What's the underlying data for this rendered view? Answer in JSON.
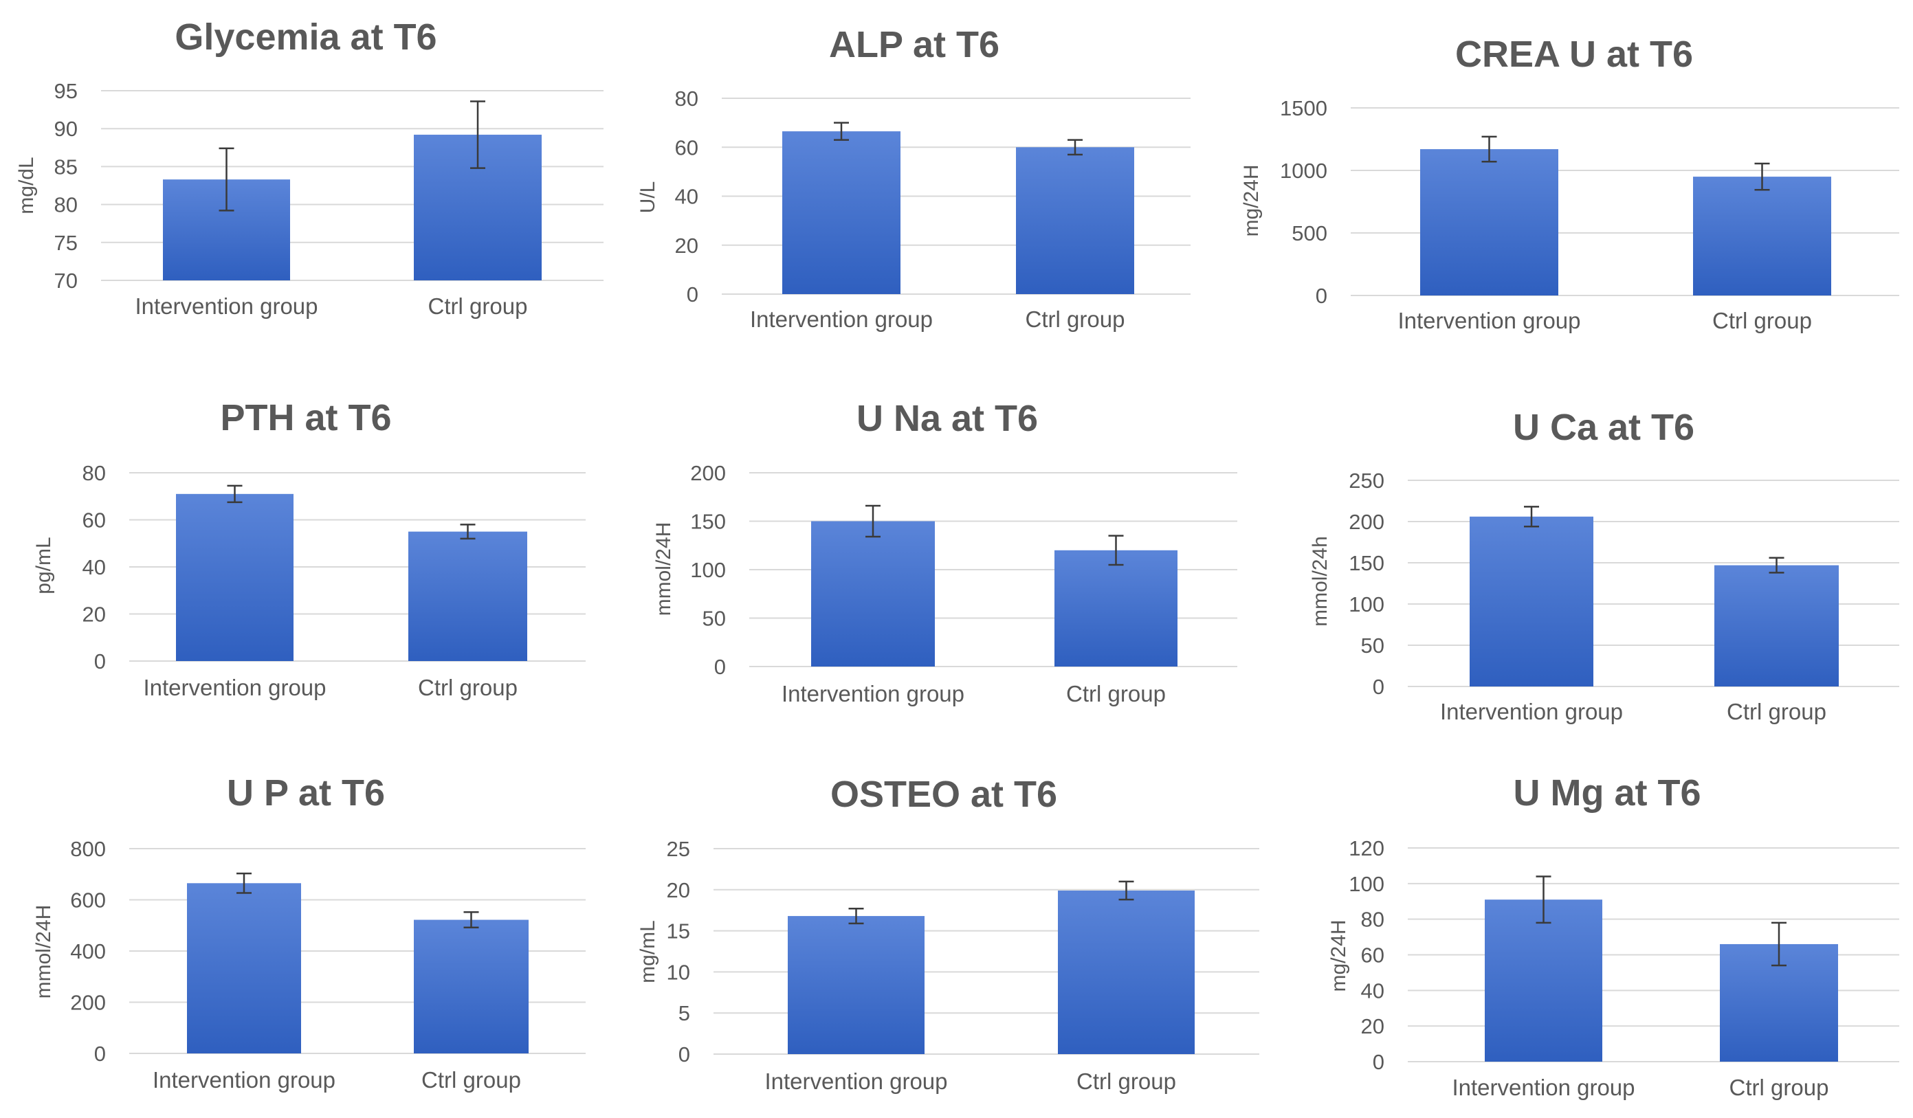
{
  "colors": {
    "bar_top": "#5b85d9",
    "bar_bottom": "#2f5fbf",
    "grid": "#d9d9d9",
    "text": "#595959"
  },
  "chart_data": [
    {
      "type": "bar",
      "title": "Glycemia at T6",
      "ylabel": "mg/dL",
      "xlabel": "",
      "categories": [
        "Intervention group",
        "Ctrl group"
      ],
      "values": [
        83.3,
        89.2
      ],
      "errors": [
        4.1,
        4.4
      ],
      "ylim": [
        70,
        95
      ],
      "yticks": [
        70,
        75,
        80,
        85,
        90,
        95
      ],
      "grid": true
    },
    {
      "type": "bar",
      "title": "ALP at T6",
      "ylabel": "U/L",
      "xlabel": "",
      "categories": [
        "Intervention group",
        "Ctrl group"
      ],
      "values": [
        66.5,
        60
      ],
      "errors": [
        3.5,
        3
      ],
      "ylim": [
        0,
        80
      ],
      "yticks": [
        0,
        20,
        40,
        60,
        80
      ],
      "grid": true
    },
    {
      "type": "bar",
      "title": "CREA U at T6",
      "ylabel": "mg/24H",
      "xlabel": "",
      "categories": [
        "Intervention group",
        "Ctrl group"
      ],
      "values": [
        1170,
        950
      ],
      "errors": [
        100,
        105
      ],
      "ylim": [
        0,
        1500
      ],
      "yticks": [
        0,
        500,
        1000,
        1500
      ],
      "grid": true
    },
    {
      "type": "bar",
      "title": "PTH at T6",
      "ylabel": "pg/mL",
      "xlabel": "",
      "categories": [
        "Intervention group",
        "Ctrl group"
      ],
      "values": [
        71,
        55
      ],
      "errors": [
        3.5,
        3
      ],
      "ylim": [
        0,
        80
      ],
      "yticks": [
        0,
        20,
        40,
        60,
        80
      ],
      "grid": true
    },
    {
      "type": "bar",
      "title": "U Na at T6",
      "ylabel": "mmol/24H",
      "xlabel": "",
      "categories": [
        "Intervention group",
        "Ctrl group"
      ],
      "values": [
        150,
        120
      ],
      "errors": [
        16,
        15
      ],
      "ylim": [
        0,
        200
      ],
      "yticks": [
        0,
        50,
        100,
        150,
        200
      ],
      "grid": true
    },
    {
      "type": "bar",
      "title": "U Ca at T6",
      "ylabel": "mmol/24h",
      "xlabel": "",
      "categories": [
        "Intervention group",
        "Ctrl group"
      ],
      "values": [
        206,
        147
      ],
      "errors": [
        12,
        9
      ],
      "ylim": [
        0,
        250
      ],
      "yticks": [
        0,
        50,
        100,
        150,
        200,
        250
      ],
      "grid": true
    },
    {
      "type": "bar",
      "title": "U P at T6",
      "ylabel": "mmol/24H",
      "xlabel": "",
      "categories": [
        "Intervention group",
        "Ctrl group"
      ],
      "values": [
        665,
        522
      ],
      "errors": [
        38,
        30
      ],
      "ylim": [
        0,
        800
      ],
      "yticks": [
        0,
        200,
        400,
        600,
        800
      ],
      "grid": true
    },
    {
      "type": "bar",
      "title": "OSTEO at T6",
      "ylabel": "mg/mL",
      "xlabel": "",
      "categories": [
        "Intervention group",
        "Ctrl group"
      ],
      "values": [
        16.8,
        19.9
      ],
      "errors": [
        0.9,
        1.1
      ],
      "ylim": [
        0,
        25
      ],
      "yticks": [
        0,
        5,
        10,
        15,
        20,
        25
      ],
      "grid": true
    },
    {
      "type": "bar",
      "title": "U Mg at T6",
      "ylabel": "mg/24H",
      "xlabel": "",
      "categories": [
        "Intervention group",
        "Ctrl group"
      ],
      "values": [
        91,
        66
      ],
      "errors": [
        13,
        12
      ],
      "ylim": [
        0,
        120
      ],
      "yticks": [
        0,
        20,
        40,
        60,
        80,
        100,
        120
      ],
      "grid": true
    }
  ]
}
